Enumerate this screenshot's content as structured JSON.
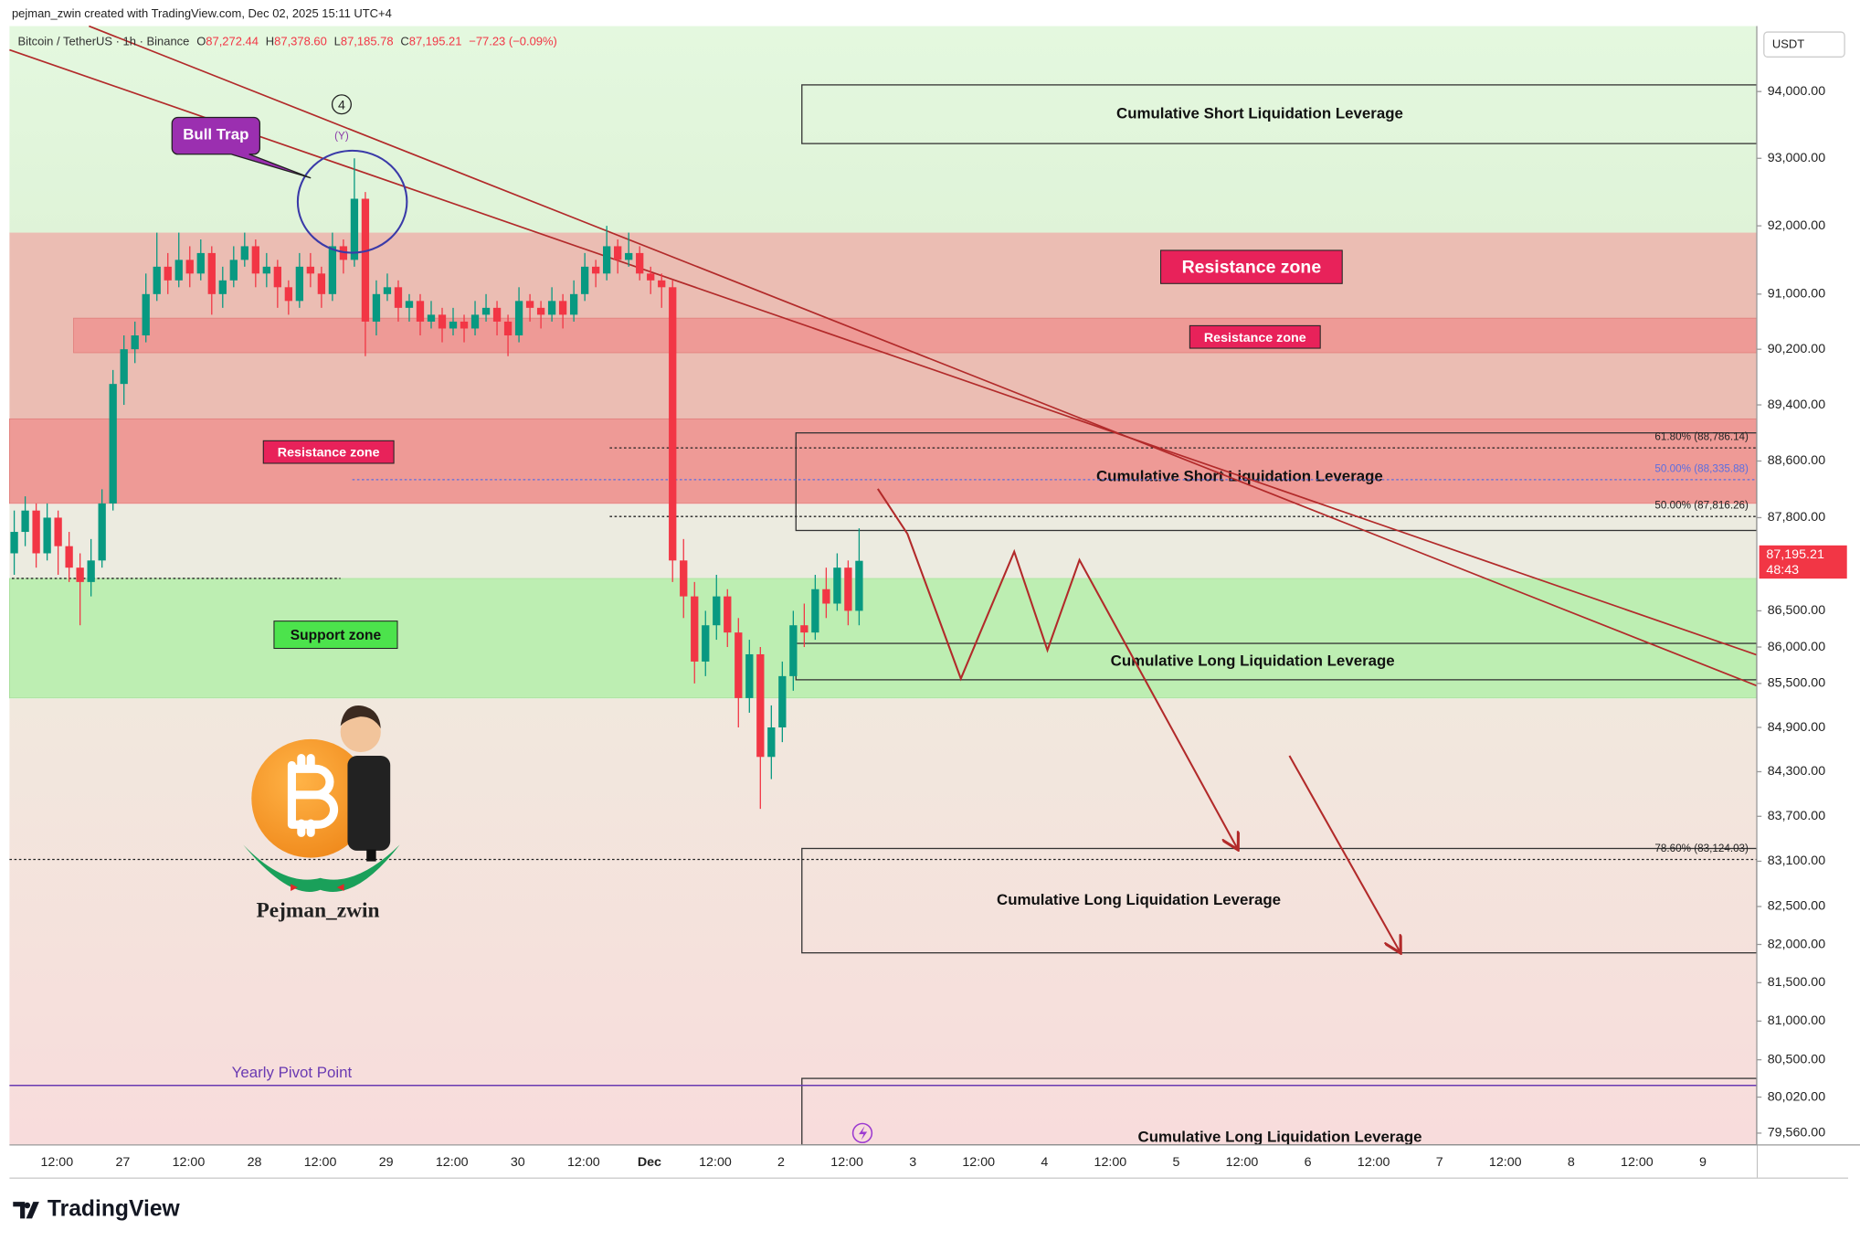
{
  "chart_data": {
    "type": "candlestick",
    "author_line": "pejman_zwin created with TradingView.com, Dec 02, 2025 15:11 UTC+4",
    "title": "Bitcoin / TetherUS · 1h · Binance",
    "ohlc_text": [
      "O",
      "87,272.44",
      "H",
      "87,378.60",
      "L",
      "87,185.78",
      "C",
      "87,195.21"
    ],
    "change": "−77.23 (−0.09%)",
    "currency": "USDT",
    "log_scale": true,
    "ylim": [
      79410,
      94990
    ],
    "yticks": [
      {
        "value": 94000,
        "label": "94,000.00"
      },
      {
        "value": 93000,
        "label": "93,000.00"
      },
      {
        "value": 92000,
        "label": "92,000.00"
      },
      {
        "value": 91000,
        "label": "91,000.00"
      },
      {
        "value": 90200,
        "label": "90,200.00"
      },
      {
        "value": 89400,
        "label": "89,400.00"
      },
      {
        "value": 88600,
        "label": "88,600.00"
      },
      {
        "value": 87800,
        "label": "87,800.00"
      },
      {
        "value": 86500,
        "label": "86,500.00"
      },
      {
        "value": 86000,
        "label": "86,000.00"
      },
      {
        "value": 85500,
        "label": "85,500.00"
      },
      {
        "value": 84900,
        "label": "84,900.00"
      },
      {
        "value": 84300,
        "label": "84,300.00"
      },
      {
        "value": 83700,
        "label": "83,700.00"
      },
      {
        "value": 83100,
        "label": "83,100.00"
      },
      {
        "value": 82500,
        "label": "82,500.00"
      },
      {
        "value": 82000,
        "label": "82,000.00"
      },
      {
        "value": 81500,
        "label": "81,500.00"
      },
      {
        "value": 81000,
        "label": "81,000.00"
      },
      {
        "value": 80500,
        "label": "80,500.00"
      },
      {
        "value": 80020,
        "label": "80,020.00"
      },
      {
        "value": 79560,
        "label": "79,560.00"
      }
    ],
    "last_price": {
      "value": 87195.21,
      "label": "87,195.21"
    },
    "countdown": "48:43",
    "time_labels": [
      "12:00",
      "27",
      "12:00",
      "28",
      "12:00",
      "29",
      "12:00",
      "30",
      "12:00",
      "Dec",
      "12:00",
      "2",
      "12:00",
      "3",
      "12:00",
      "4",
      "12:00",
      "5",
      "12:00",
      "6",
      "12:00",
      "7",
      "12:00",
      "8",
      "12:00",
      "9"
    ],
    "up_color": "#089981",
    "down_color": "#f23645",
    "candles": [
      [
        87300,
        87900,
        87000,
        87600
      ],
      [
        87600,
        88100,
        87400,
        87900
      ],
      [
        87900,
        88000,
        87100,
        87300
      ],
      [
        87300,
        88000,
        87200,
        87800
      ],
      [
        87800,
        87900,
        87000,
        87400
      ],
      [
        87400,
        87600,
        86900,
        87100
      ],
      [
        87100,
        87300,
        86300,
        86900
      ],
      [
        86900,
        87500,
        86700,
        87200
      ],
      [
        87200,
        88200,
        87100,
        88000
      ],
      [
        88000,
        89900,
        87900,
        89700
      ],
      [
        89700,
        90400,
        89400,
        90200
      ],
      [
        90200,
        90600,
        90000,
        90400
      ],
      [
        90400,
        91300,
        90300,
        91000
      ],
      [
        91000,
        91900,
        90900,
        91400
      ],
      [
        91400,
        91600,
        91000,
        91200
      ],
      [
        91200,
        91900,
        91100,
        91500
      ],
      [
        91500,
        91700,
        91100,
        91300
      ],
      [
        91300,
        91800,
        91200,
        91600
      ],
      [
        91600,
        91700,
        90700,
        91000
      ],
      [
        91000,
        91400,
        90800,
        91200
      ],
      [
        91200,
        91700,
        91100,
        91500
      ],
      [
        91500,
        91900,
        91400,
        91700
      ],
      [
        91700,
        91800,
        91100,
        91300
      ],
      [
        91300,
        91600,
        91100,
        91400
      ],
      [
        91400,
        91500,
        90800,
        91100
      ],
      [
        91100,
        91200,
        90700,
        90900
      ],
      [
        90900,
        91600,
        90800,
        91400
      ],
      [
        91400,
        91600,
        91100,
        91300
      ],
      [
        91300,
        91400,
        90800,
        91000
      ],
      [
        91000,
        91900,
        90900,
        91700
      ],
      [
        91700,
        91800,
        91300,
        91500
      ],
      [
        91500,
        93000,
        91400,
        92400
      ],
      [
        92400,
        92500,
        90100,
        90600
      ],
      [
        90600,
        91200,
        90400,
        91000
      ],
      [
        91000,
        91300,
        90900,
        91100
      ],
      [
        91100,
        91200,
        90600,
        90800
      ],
      [
        90800,
        91000,
        90600,
        90900
      ],
      [
        90900,
        91000,
        90400,
        90600
      ],
      [
        90600,
        90900,
        90500,
        90700
      ],
      [
        90700,
        90800,
        90300,
        90500
      ],
      [
        90500,
        90800,
        90400,
        90600
      ],
      [
        90600,
        90700,
        90300,
        90500
      ],
      [
        90500,
        90900,
        90400,
        90700
      ],
      [
        90700,
        91000,
        90600,
        90800
      ],
      [
        90800,
        90900,
        90400,
        90600
      ],
      [
        90600,
        90700,
        90100,
        90400
      ],
      [
        90400,
        91100,
        90300,
        90900
      ],
      [
        90900,
        91000,
        90600,
        90800
      ],
      [
        90800,
        90900,
        90500,
        90700
      ],
      [
        90700,
        91100,
        90600,
        90900
      ],
      [
        90900,
        91000,
        90500,
        90700
      ],
      [
        90700,
        91200,
        90600,
        91000
      ],
      [
        91000,
        91600,
        90900,
        91400
      ],
      [
        91400,
        91500,
        91100,
        91300
      ],
      [
        91300,
        92000,
        91200,
        91700
      ],
      [
        91700,
        91800,
        91300,
        91500
      ],
      [
        91500,
        91900,
        91400,
        91600
      ],
      [
        91600,
        91700,
        91200,
        91300
      ],
      [
        91300,
        91400,
        91000,
        91200
      ],
      [
        91200,
        91300,
        90800,
        91100
      ],
      [
        91100,
        91200,
        86900,
        87200
      ],
      [
        87200,
        87500,
        86400,
        86700
      ],
      [
        86700,
        86900,
        85500,
        85800
      ],
      [
        85800,
        86500,
        85600,
        86300
      ],
      [
        86300,
        87000,
        86100,
        86700
      ],
      [
        86700,
        86800,
        86000,
        86200
      ],
      [
        86200,
        86400,
        84900,
        85300
      ],
      [
        85300,
        86100,
        85100,
        85900
      ],
      [
        85900,
        86000,
        83800,
        84500
      ],
      [
        84500,
        85200,
        84200,
        84900
      ],
      [
        84900,
        85800,
        84700,
        85600
      ],
      [
        85600,
        86500,
        85400,
        86300
      ],
      [
        86300,
        86600,
        86000,
        86200
      ],
      [
        86200,
        87000,
        86100,
        86800
      ],
      [
        86800,
        87100,
        86400,
        86600
      ],
      [
        86600,
        87300,
        86500,
        87100
      ],
      [
        87100,
        87200,
        86300,
        86500
      ],
      [
        86500,
        87650,
        86300,
        87195.21
      ]
    ],
    "zones": [
      {
        "top": 91900,
        "bottom": 88000,
        "color": "#ebbdb3"
      },
      {
        "top": 90650,
        "bottom": 90150,
        "color": "#ee9a96"
      },
      {
        "top": 89200,
        "bottom": 88000,
        "color": "#ee9a96"
      },
      {
        "top": 86950,
        "bottom": 85300,
        "color": "#bdeeb2"
      }
    ],
    "zone_labels": [
      "Resistance zone",
      "Resistance zone",
      "Resistance zone",
      "Support zone"
    ],
    "boxes": [
      {
        "label": "Cumulative Short Liquidation Leverage",
        "top": 94100,
        "bottom": 93220
      },
      {
        "label": "Cumulative Short Liquidation Leverage",
        "top": 89000,
        "bottom": 87620
      },
      {
        "label": "Cumulative Long Liquidation Leverage",
        "top": 86050,
        "bottom": 85550
      },
      {
        "label": "Cumulative Long Liquidation Leverage",
        "top": 83270,
        "bottom": 81890
      },
      {
        "label": "Cumulative Long Liquidation Leverage",
        "top": 80260,
        "bottom": 79410
      }
    ],
    "fib_levels": [
      {
        "value": 88786.14,
        "label": "61.80% (88,786.14)"
      },
      {
        "value": 88335.88,
        "label": "50.00% (88,335.88)"
      },
      {
        "value": 87816.26,
        "label": "50.00% (87,816.26)"
      },
      {
        "value": 83124.03,
        "label": "78.60% (83,124.03)"
      }
    ],
    "support_level": 86950,
    "pivot": {
      "value": 80170,
      "label": "Yearly Pivot Point"
    },
    "wave_labels": [
      "4",
      "(Y)"
    ],
    "callout": "Bull Trap",
    "brand": "Pejman_zwin",
    "footer": "TradingView"
  }
}
